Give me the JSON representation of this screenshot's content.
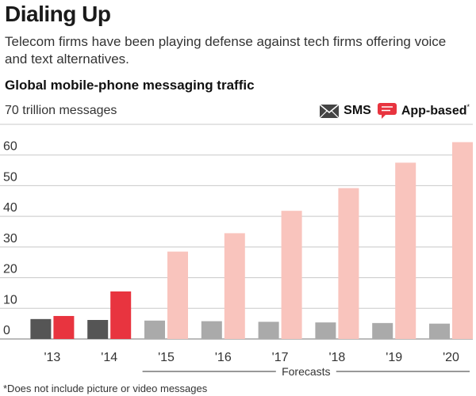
{
  "header": {
    "headline": "Dialing Up",
    "dek": "Telecom firms have been playing defense against tech firms offering voice and text alternatives.",
    "subhead": "Global mobile-phone messaging traffic"
  },
  "footnote": "*Does not include picture or video messages",
  "icons": {
    "sms": "envelope-icon",
    "app": "chat-bubble-icon"
  },
  "chart_data": {
    "type": "bar",
    "title": "Global mobile-phone messaging traffic",
    "ylabel": "70 trillion messages",
    "categories": [
      "'13",
      "'14",
      "'15",
      "'16",
      "'17",
      "'18",
      "'19",
      "'20"
    ],
    "series": [
      {
        "name": "SMS",
        "values": [
          6.5,
          6.2,
          6.0,
          5.8,
          5.6,
          5.4,
          5.2,
          5.0
        ]
      },
      {
        "name": "App-based",
        "name_mark": "*",
        "values": [
          7.5,
          15.5,
          28.5,
          34.5,
          41.8,
          49.2,
          57.5,
          64.2
        ]
      }
    ],
    "yticks": [
      0,
      10,
      20,
      30,
      40,
      50,
      60
    ],
    "ylim": [
      0,
      70
    ],
    "grid": true,
    "legend": "top-right",
    "forecast_label": "Forecasts",
    "forecast_from_index": 2,
    "colors": {
      "sms_actual": "#555555",
      "sms_forecast": "#aaaaaa",
      "app_actual": "#e8343f",
      "app_forecast": "#f9c4bd",
      "grid": "#c8c8c8"
    }
  }
}
